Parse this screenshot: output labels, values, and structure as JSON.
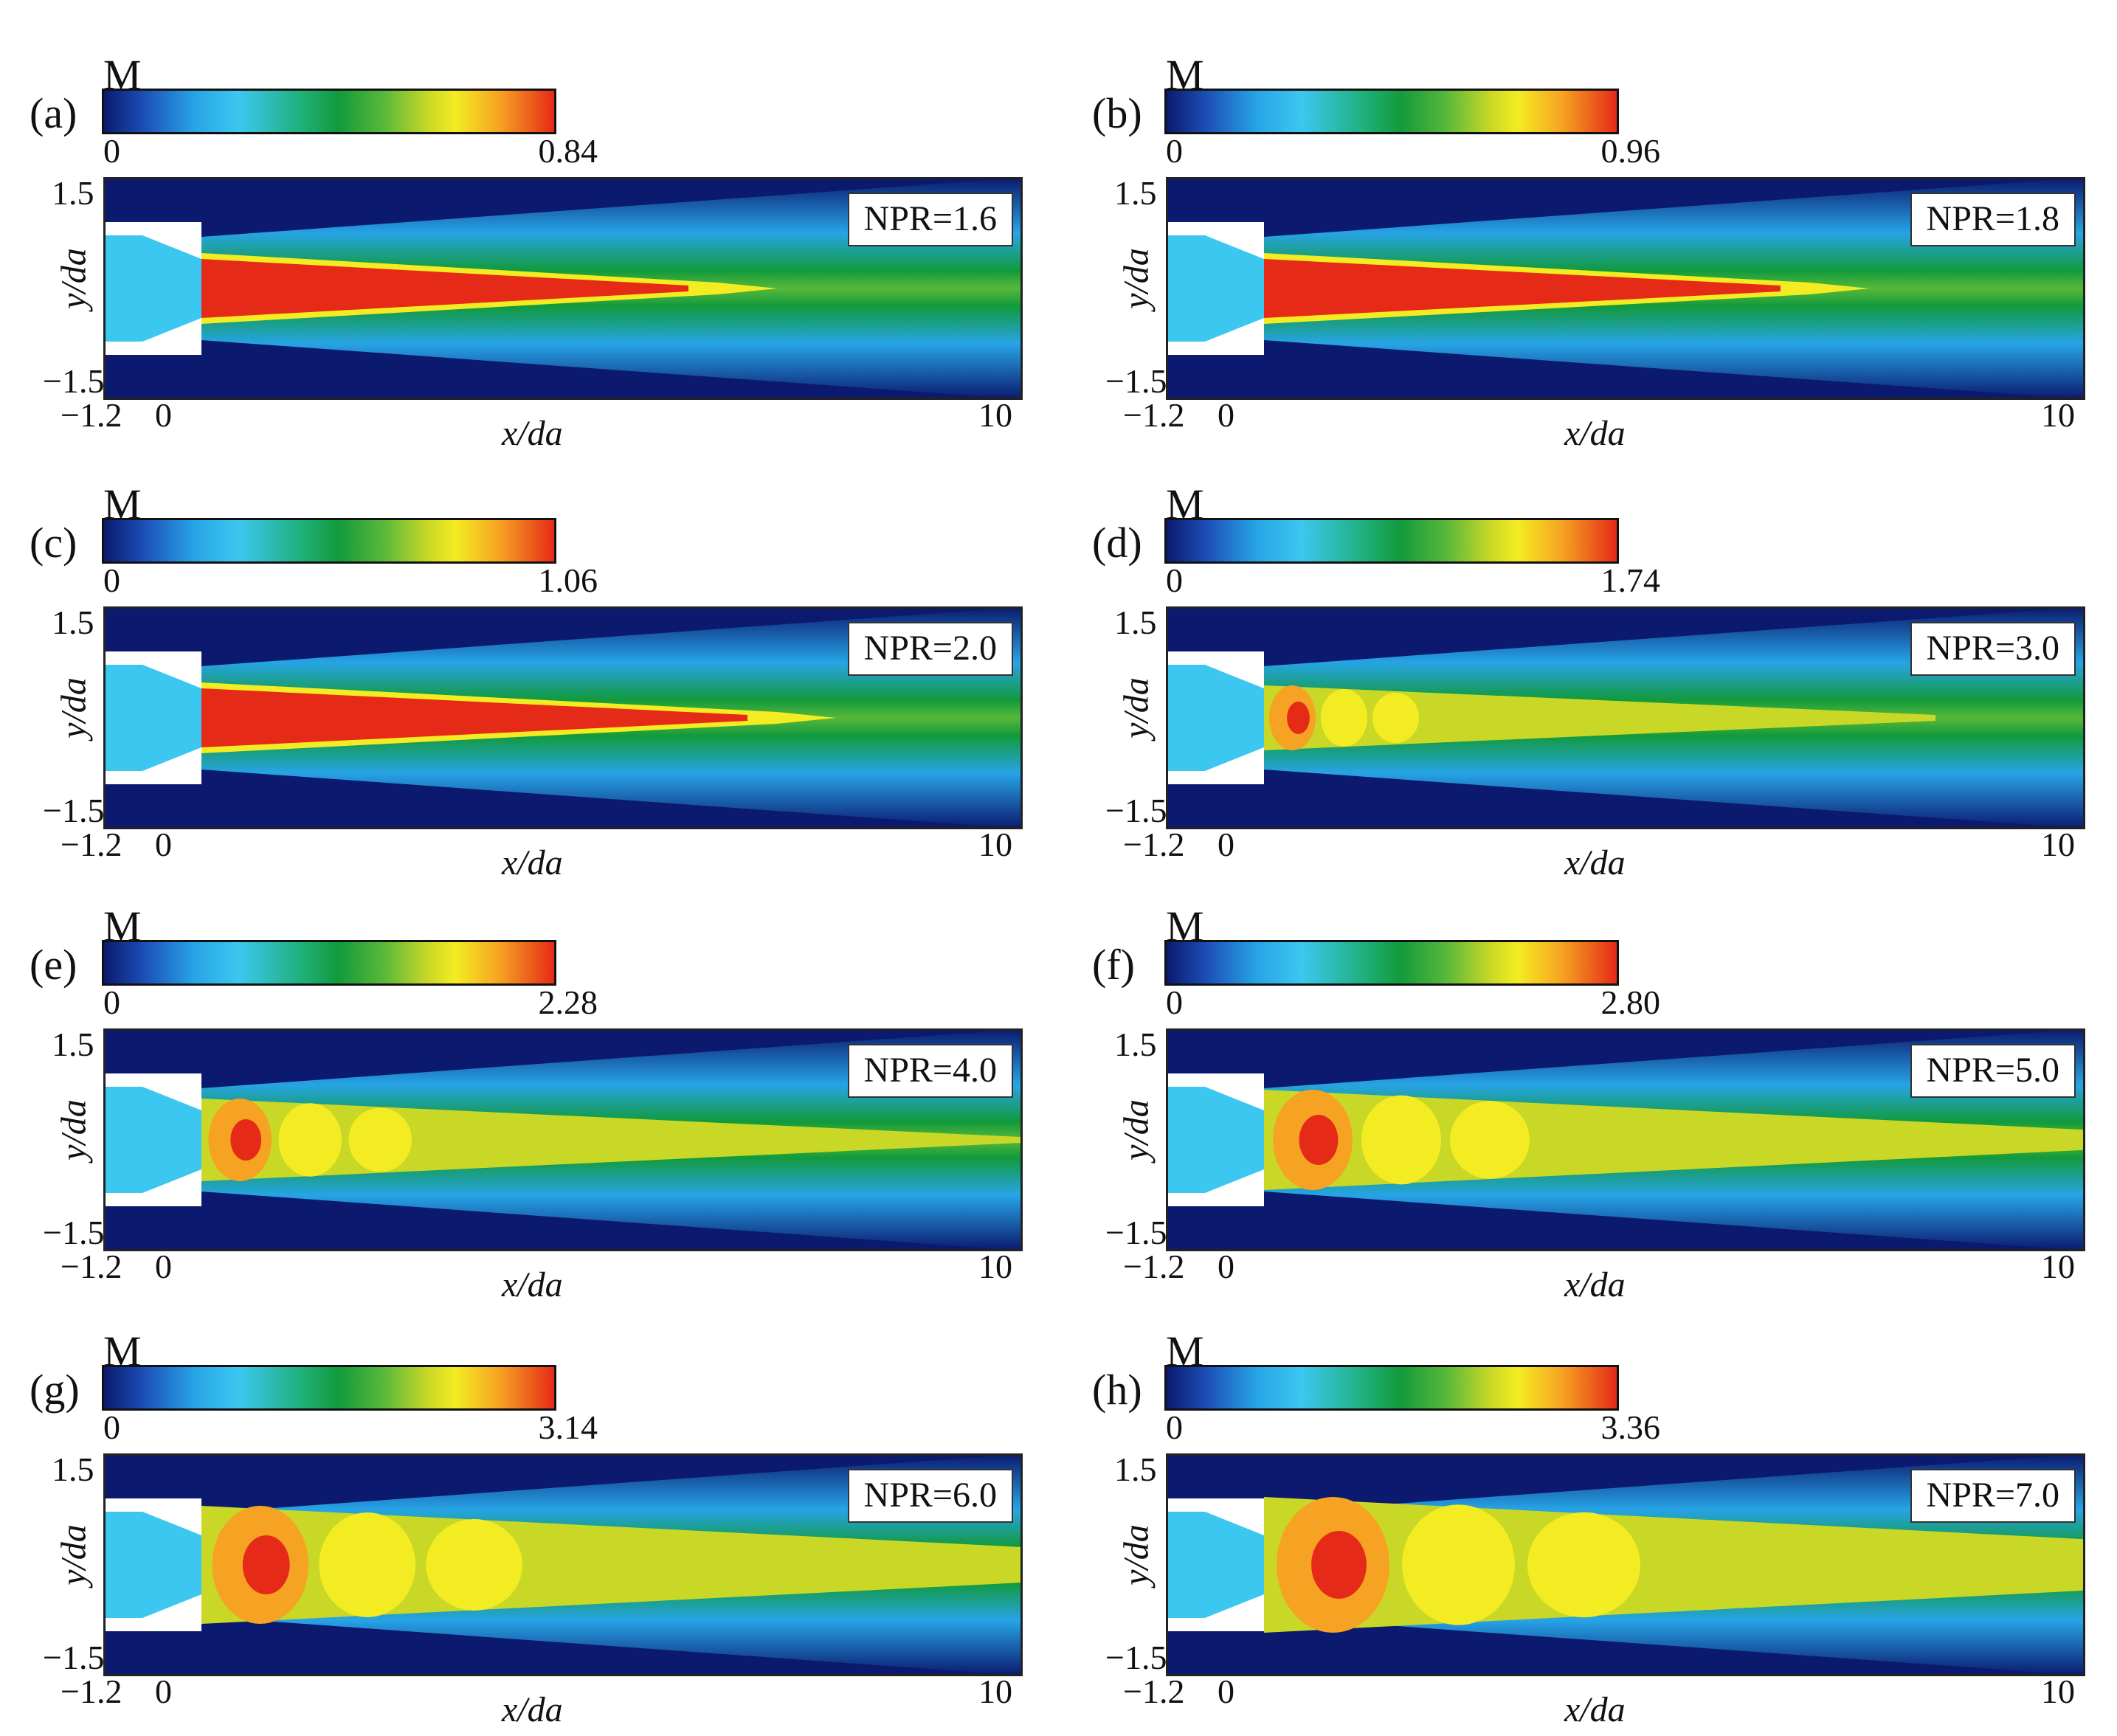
{
  "colormap": [
    "#0b1a6e",
    "#1d4fb8",
    "#27a4e6",
    "#3cc7f0",
    "#1fb07a",
    "#129a3c",
    "#57b83a",
    "#c9d827",
    "#f4ec22",
    "#f6a222",
    "#e52a17"
  ],
  "axes": {
    "y_label": "y/da",
    "x_label": "x/da",
    "y_ticks": [
      "1.5",
      "−1.5"
    ],
    "x_ticks": [
      "−1.2",
      "0",
      "10"
    ]
  },
  "panels": [
    {
      "letter": "(a)",
      "colorbar_label": "M",
      "colorbar_min": "0",
      "colorbar_max": "0.84",
      "npr_label": "NPR=1.6",
      "npr": 1.6
    },
    {
      "letter": "(b)",
      "colorbar_label": "M",
      "colorbar_min": "0",
      "colorbar_max": "0.96",
      "npr_label": "NPR=1.8",
      "npr": 1.8
    },
    {
      "letter": "(c)",
      "colorbar_label": "M",
      "colorbar_min": "0",
      "colorbar_max": "1.06",
      "npr_label": "NPR=2.0",
      "npr": 2.0
    },
    {
      "letter": "(d)",
      "colorbar_label": "M",
      "colorbar_min": "0",
      "colorbar_max": "1.74",
      "npr_label": "NPR=3.0",
      "npr": 3.0
    },
    {
      "letter": "(e)",
      "colorbar_label": "M",
      "colorbar_min": "0",
      "colorbar_max": "2.28",
      "npr_label": "NPR=4.0",
      "npr": 4.0
    },
    {
      "letter": "(f)",
      "colorbar_label": "M",
      "colorbar_min": "0",
      "colorbar_max": "2.80",
      "npr_label": "NPR=5.0",
      "npr": 5.0
    },
    {
      "letter": "(g)",
      "colorbar_label": "M",
      "colorbar_min": "0",
      "colorbar_max": "3.14",
      "npr_label": "NPR=6.0",
      "npr": 6.0
    },
    {
      "letter": "(h)",
      "colorbar_label": "M",
      "colorbar_min": "0",
      "colorbar_max": "3.36",
      "npr_label": "NPR=7.0",
      "npr": 7.0
    }
  ]
}
